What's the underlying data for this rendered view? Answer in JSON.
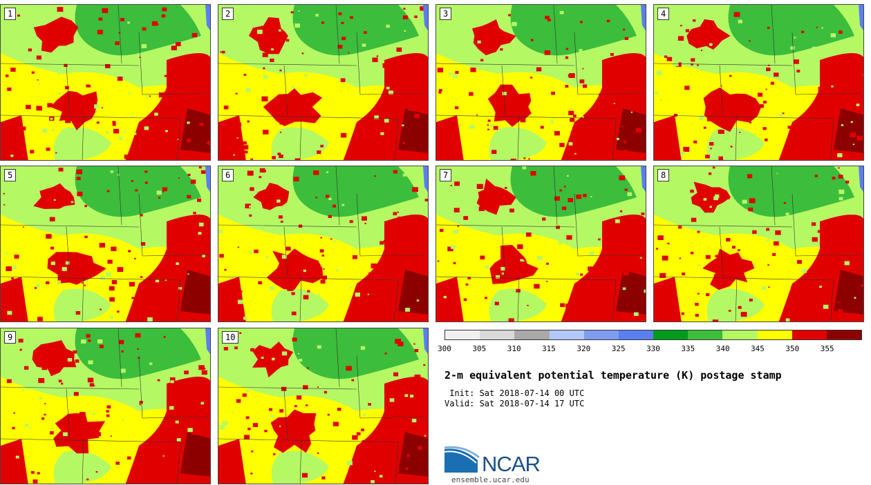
{
  "panels": [
    {
      "label": "1"
    },
    {
      "label": "2"
    },
    {
      "label": "3"
    },
    {
      "label": "4"
    },
    {
      "label": "5"
    },
    {
      "label": "6"
    },
    {
      "label": "7"
    },
    {
      "label": "8"
    },
    {
      "label": "9"
    },
    {
      "label": "10"
    }
  ],
  "colorbar": {
    "colors": [
      "#f0f0f0",
      "#d9d9d9",
      "#a9a9a9",
      "#b4c8f7",
      "#7f9cf0",
      "#5b7ef0",
      "#009a1e",
      "#3cbd3c",
      "#b4f864",
      "#ffff00",
      "#e10000",
      "#8c0000"
    ],
    "ticks": [
      "300",
      "305",
      "310",
      "315",
      "320",
      "325",
      "330",
      "335",
      "340",
      "345",
      "350",
      "355"
    ]
  },
  "title": "2-m equivalent potential temperature (K) postage stamp",
  "init_line": " Init: Sat 2018-07-14 00 UTC",
  "valid_line": "Valid: Sat 2018-07-14 17 UTC",
  "logo": {
    "name": "NCAR",
    "url": "ensemble.ucar.edu"
  }
}
